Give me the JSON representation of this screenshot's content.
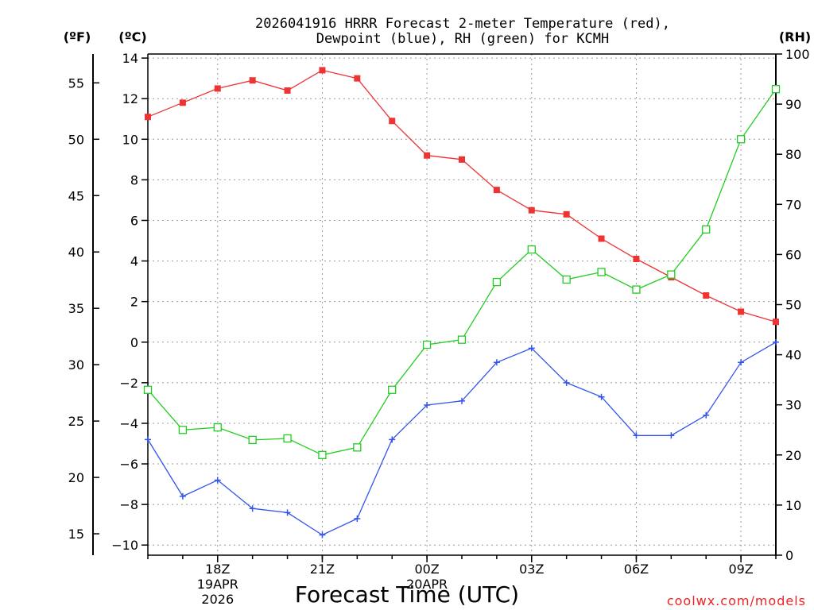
{
  "chart_data": {
    "type": "line",
    "title_line1": "2026041916 HRRR Forecast 2-meter Temperature (red),",
    "title_line2": "Dewpoint (blue), RH (green) for KCMH",
    "xlabel": "Forecast Time (UTC)",
    "watermark": "coolwx.com/models",
    "unit_labels": {
      "fahrenheit": "(ºF)",
      "celsius": "(ºC)",
      "rh": "(RH)"
    },
    "x_hours": [
      16,
      17,
      18,
      19,
      20,
      21,
      22,
      23,
      24,
      25,
      26,
      27,
      28,
      29,
      30,
      31,
      32,
      33,
      34
    ],
    "xlim": [
      16,
      34
    ],
    "x_ticks": [
      {
        "hour": 18,
        "label": "18Z",
        "date": "19APR",
        "year": "2026"
      },
      {
        "hour": 21,
        "label": "21Z"
      },
      {
        "hour": 24,
        "label": "00Z",
        "date": "20APR"
      },
      {
        "hour": 27,
        "label": "03Z"
      },
      {
        "hour": 30,
        "label": "06Z"
      },
      {
        "hour": 33,
        "label": "09Z"
      }
    ],
    "celsius_axis": {
      "ylim": [
        -10.5,
        14.2
      ],
      "ticks": [
        14,
        12,
        10,
        8,
        6,
        4,
        2,
        0,
        -2,
        -4,
        -6,
        -8,
        -10
      ]
    },
    "fahrenheit_axis": {
      "ticks": [
        55,
        50,
        45,
        40,
        35,
        30,
        25,
        20,
        15
      ]
    },
    "rh_axis": {
      "ylim": [
        0,
        100
      ],
      "ticks": [
        100,
        90,
        80,
        70,
        60,
        50,
        40,
        30,
        20,
        10,
        0
      ]
    },
    "series": [
      {
        "name": "Temperature",
        "color": "#ee3333",
        "marker": "filled-square",
        "axis": "celsius",
        "values": [
          11.1,
          11.8,
          12.5,
          12.9,
          12.4,
          13.4,
          13.0,
          10.9,
          9.2,
          9.0,
          7.5,
          6.5,
          6.3,
          5.1,
          4.1,
          3.2,
          2.3,
          1.5,
          1.0
        ]
      },
      {
        "name": "Dewpoint",
        "color": "#3355ee",
        "marker": "plus",
        "axis": "celsius",
        "values": [
          -4.8,
          -7.6,
          -6.8,
          -8.2,
          -8.4,
          -9.5,
          -8.7,
          -4.8,
          -3.1,
          -2.9,
          -1.0,
          -0.3,
          -2.0,
          -2.7,
          -4.6,
          -4.6,
          -3.6,
          -1.0,
          0.0
        ]
      },
      {
        "name": "RH",
        "color": "#22cc22",
        "marker": "open-square",
        "axis": "rh",
        "values": [
          33,
          25,
          25.5,
          23,
          23.3,
          20,
          21.5,
          33,
          42,
          43,
          54.5,
          61,
          55,
          56.5,
          53,
          56,
          65,
          83,
          93
        ]
      }
    ]
  }
}
